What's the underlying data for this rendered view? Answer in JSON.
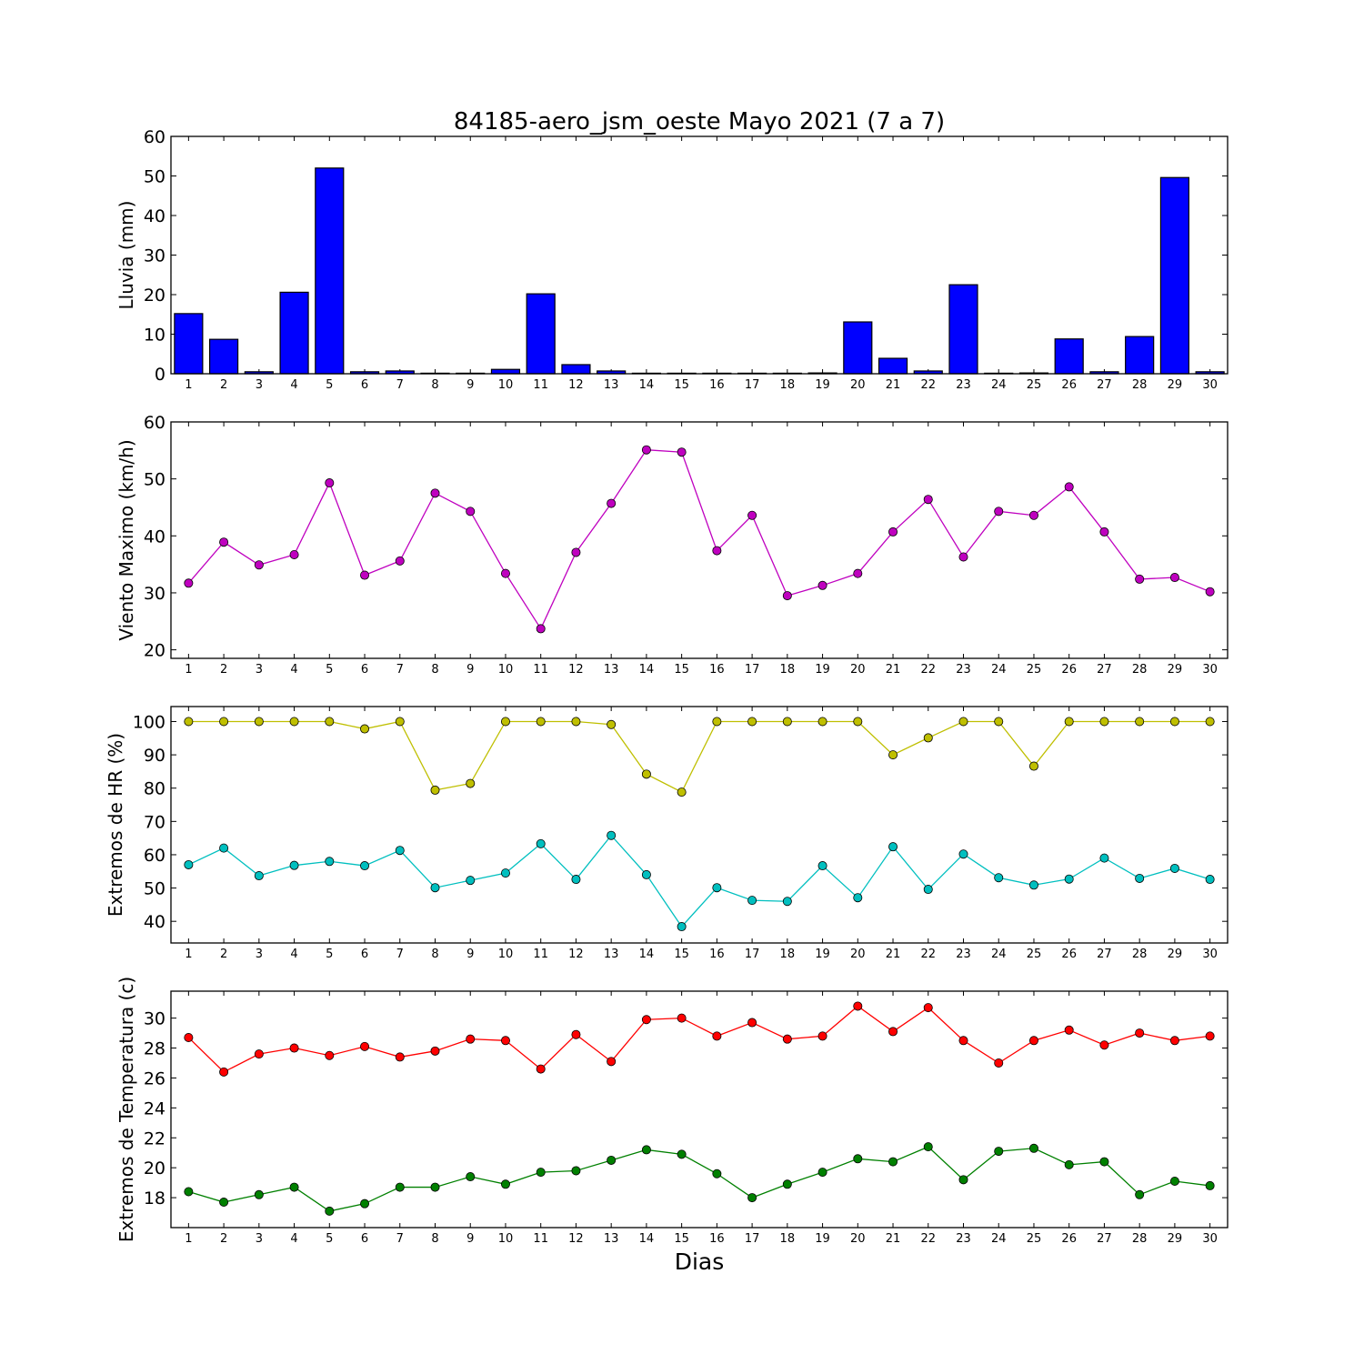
{
  "figure": {
    "title": "84185-aero_jsm_oeste Mayo 2021  (7 a 7)",
    "xlabel": "Dias"
  },
  "chart_data": [
    {
      "type": "bar",
      "ylabel": "Lluvia (mm)",
      "ylim": [
        0,
        60
      ],
      "yticks": [
        0,
        10,
        20,
        30,
        40,
        50,
        60
      ],
      "categories": [
        "1",
        "2",
        "3",
        "4",
        "5",
        "6",
        "7",
        "8",
        "9",
        "10",
        "11",
        "12",
        "13",
        "14",
        "15",
        "16",
        "17",
        "18",
        "19",
        "20",
        "21",
        "22",
        "23",
        "24",
        "25",
        "26",
        "27",
        "28",
        "29",
        "30"
      ],
      "series": [
        {
          "color": "#0000ff",
          "values": [
            15.2,
            8.7,
            0.5,
            20.6,
            52.0,
            0.5,
            0.7,
            0.0,
            0.0,
            1.1,
            20.2,
            2.3,
            0.7,
            0.0,
            0.0,
            0.0,
            0.0,
            0.0,
            0.2,
            13.1,
            3.9,
            0.7,
            22.5,
            0.0,
            0.2,
            8.8,
            0.5,
            9.4,
            49.6,
            0.5
          ]
        }
      ],
      "grid": false
    },
    {
      "type": "line",
      "ylabel": "Viento Maximo (km/h)",
      "ylim": [
        18.5,
        60
      ],
      "yticks": [
        20,
        30,
        40,
        50,
        60
      ],
      "categories": [
        "1",
        "2",
        "3",
        "4",
        "5",
        "6",
        "7",
        "8",
        "9",
        "10",
        "11",
        "12",
        "13",
        "14",
        "15",
        "16",
        "17",
        "18",
        "19",
        "20",
        "21",
        "22",
        "23",
        "24",
        "25",
        "26",
        "27",
        "28",
        "29",
        "30"
      ],
      "series": [
        {
          "color": "#bf00bf",
          "values": [
            31.7,
            38.9,
            34.9,
            36.7,
            49.3,
            33.1,
            35.6,
            47.5,
            44.3,
            33.4,
            23.7,
            37.1,
            45.7,
            55.1,
            54.7,
            37.4,
            43.6,
            29.5,
            31.3,
            33.4,
            40.7,
            46.4,
            36.3,
            44.3,
            43.6,
            48.6,
            40.7,
            32.4,
            32.7,
            30.2
          ]
        }
      ],
      "grid": false
    },
    {
      "type": "line",
      "ylabel": "Extremos de HR (%)",
      "ylim": [
        33.5,
        104.5
      ],
      "yticks": [
        40,
        50,
        60,
        70,
        80,
        90,
        100
      ],
      "categories": [
        "1",
        "2",
        "3",
        "4",
        "5",
        "6",
        "7",
        "8",
        "9",
        "10",
        "11",
        "12",
        "13",
        "14",
        "15",
        "16",
        "17",
        "18",
        "19",
        "20",
        "21",
        "22",
        "23",
        "24",
        "25",
        "26",
        "27",
        "28",
        "29",
        "30"
      ],
      "series": [
        {
          "color": "#bfbf00",
          "values": [
            100,
            100,
            100,
            100,
            100,
            97.8,
            100,
            79.4,
            81.4,
            100,
            100,
            100,
            99.1,
            84.2,
            78.8,
            100,
            100,
            100,
            100,
            100,
            90.0,
            95.1,
            100,
            100,
            86.6,
            100,
            100,
            100,
            100,
            100
          ]
        },
        {
          "color": "#00bfbf",
          "values": [
            57.0,
            62.0,
            53.7,
            56.8,
            58.0,
            56.7,
            61.3,
            50.1,
            52.3,
            54.5,
            63.3,
            52.6,
            65.8,
            54.0,
            38.4,
            50.1,
            46.3,
            46.0,
            56.7,
            47.1,
            62.4,
            49.6,
            60.2,
            53.1,
            50.9,
            52.7,
            59.0,
            52.9,
            55.9,
            52.6
          ]
        }
      ],
      "grid": false
    },
    {
      "type": "line",
      "ylabel": "Extremos de Temperatura (c)",
      "ylim": [
        16,
        31.8
      ],
      "yticks": [
        18,
        20,
        22,
        24,
        26,
        28,
        30
      ],
      "categories": [
        "1",
        "2",
        "3",
        "4",
        "5",
        "6",
        "7",
        "8",
        "9",
        "10",
        "11",
        "12",
        "13",
        "14",
        "15",
        "16",
        "17",
        "18",
        "19",
        "20",
        "21",
        "22",
        "23",
        "24",
        "25",
        "26",
        "27",
        "28",
        "29",
        "30"
      ],
      "series": [
        {
          "color": "#ff0000",
          "values": [
            28.7,
            26.4,
            27.6,
            28.0,
            27.5,
            28.1,
            27.4,
            27.8,
            28.6,
            28.5,
            26.6,
            28.9,
            27.1,
            29.9,
            30.0,
            28.8,
            29.7,
            28.6,
            28.8,
            30.8,
            29.1,
            30.7,
            28.5,
            27.0,
            28.5,
            29.2,
            28.2,
            29.0,
            28.5,
            28.8
          ]
        },
        {
          "color": "#008000",
          "values": [
            18.4,
            17.7,
            18.2,
            18.7,
            17.1,
            17.6,
            18.7,
            18.7,
            19.4,
            18.9,
            19.7,
            19.8,
            20.5,
            21.2,
            20.9,
            19.6,
            18.0,
            18.9,
            19.7,
            20.6,
            20.4,
            21.4,
            19.2,
            21.1,
            21.3,
            20.2,
            20.4,
            18.2,
            19.1,
            18.8
          ]
        }
      ],
      "grid": false
    }
  ]
}
